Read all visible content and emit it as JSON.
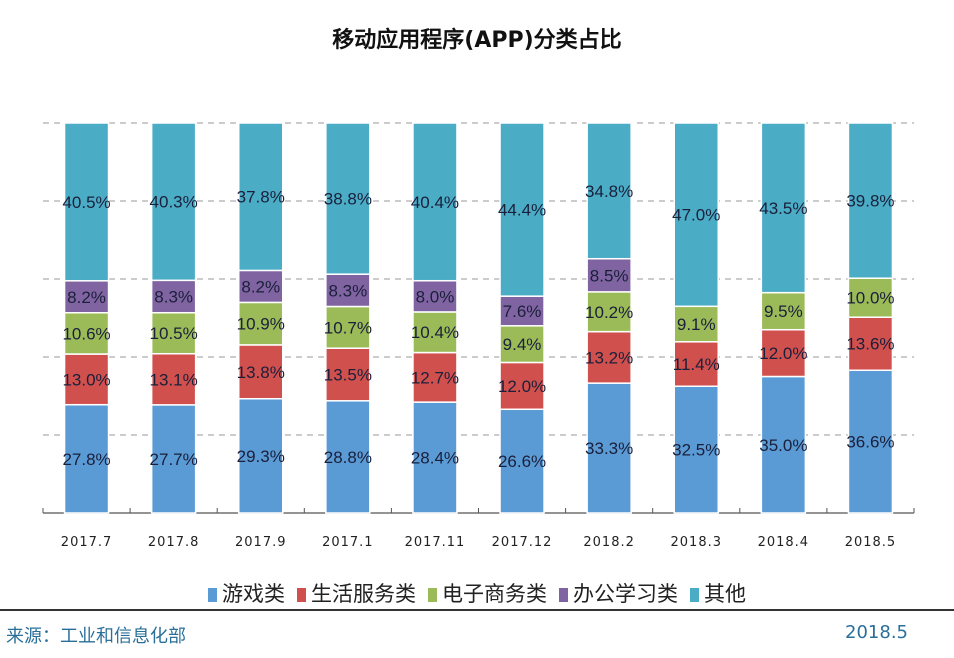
{
  "chart_data": {
    "type": "bar",
    "stacked": true,
    "title": "移动应用程序(APP)分类占比",
    "categories": [
      "2017.7",
      "2017.8",
      "2017.9",
      "2017.1",
      "2017.11",
      "2017.12",
      "2018.2",
      "2018.3",
      "2018.4",
      "2018.5"
    ],
    "series": [
      {
        "name": "游戏类",
        "color": "#5b9bd5",
        "values": [
          27.8,
          27.7,
          29.3,
          28.8,
          28.4,
          26.6,
          33.3,
          32.5,
          35.0,
          36.6
        ]
      },
      {
        "name": "生活服务类",
        "color": "#d0504e",
        "values": [
          13.0,
          13.1,
          13.8,
          13.5,
          12.7,
          12.0,
          13.2,
          11.4,
          12.0,
          13.6
        ]
      },
      {
        "name": "电子商务类",
        "color": "#9bbb59",
        "values": [
          10.6,
          10.5,
          10.9,
          10.7,
          10.4,
          9.4,
          10.2,
          9.1,
          9.5,
          10.0
        ]
      },
      {
        "name": "办公学习类",
        "color": "#8064a2",
        "values": [
          8.2,
          8.3,
          8.2,
          8.3,
          8.0,
          7.6,
          8.5,
          null,
          null,
          null
        ]
      },
      {
        "name": "其他",
        "color": "#4bacc6",
        "values": [
          40.5,
          40.3,
          37.8,
          38.8,
          40.4,
          44.4,
          34.8,
          47.0,
          43.5,
          39.8
        ]
      }
    ],
    "ylim": [
      0,
      100
    ],
    "grid": true,
    "legend_position": "bottom",
    "value_format": "percent, 1 decimal"
  },
  "footer": {
    "source": "来源：工业和信息化部",
    "date": "2018.5"
  }
}
